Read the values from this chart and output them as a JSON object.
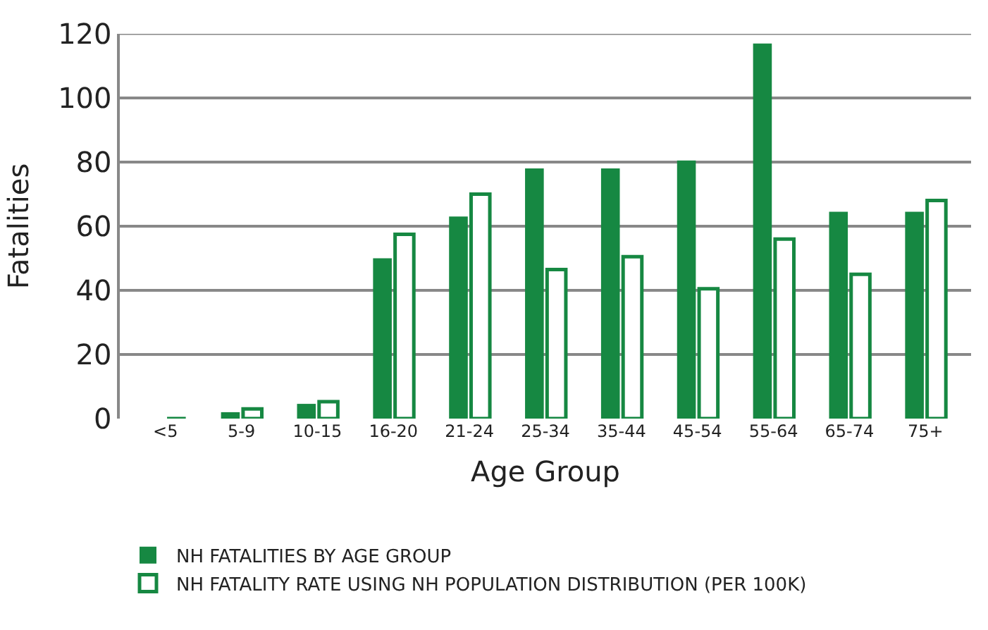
{
  "chart_data": {
    "type": "bar",
    "xlabel": "Age Group",
    "ylabel": "Fatalities",
    "categories": [
      "<5",
      "5-9",
      "10-15",
      "16-20",
      "21-24",
      "25-34",
      "35-44",
      "45-54",
      "55-64",
      "65-74",
      "75+"
    ],
    "series": [
      {
        "name": "NH FATALITIES BY AGE GROUP",
        "color": "#168842",
        "values": [
          0,
          2,
          4.6,
          50,
          63,
          78,
          78,
          80.5,
          117,
          64.5,
          64.5
        ]
      },
      {
        "name": "NH FATALITY RATE USING NH POPULATION DISTRIBUTION (PER 100K)",
        "color": "#168842",
        "values": [
          0,
          3,
          5.3,
          57.5,
          70,
          46.5,
          50.5,
          40.5,
          56,
          45,
          68
        ]
      }
    ],
    "ylim": [
      0,
      120
    ],
    "yticks": [
      0,
      20,
      40,
      60,
      80,
      100,
      120
    ],
    "grid": "y",
    "legend": "bottom left"
  }
}
